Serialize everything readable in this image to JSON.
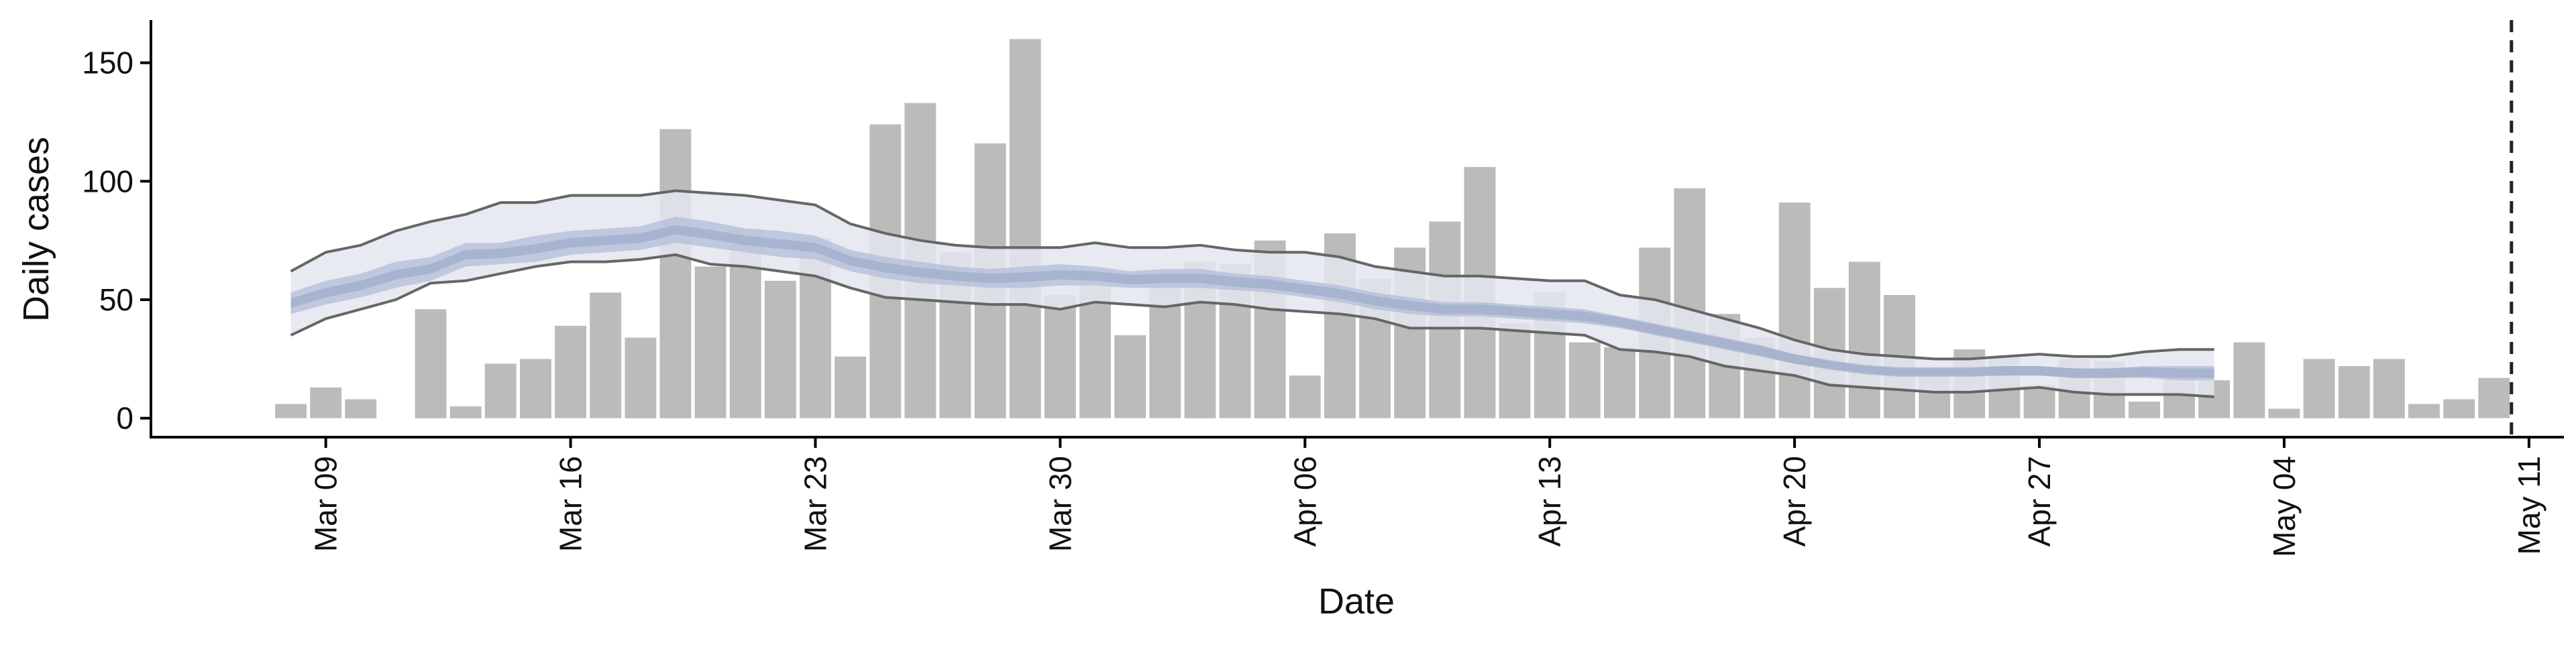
{
  "chart_data": {
    "type": "bar",
    "title": "",
    "xlabel": "Date",
    "ylabel": "Daily cases",
    "x_range": [
      "2020-03-04",
      "2020-05-12"
    ],
    "ylim": [
      -8,
      168
    ],
    "y_ticks": [
      0,
      50,
      100,
      150
    ],
    "x_ticks": [
      {
        "date": "2020-03-09",
        "label": "Mar 09"
      },
      {
        "date": "2020-03-16",
        "label": "Mar 16"
      },
      {
        "date": "2020-03-23",
        "label": "Mar 23"
      },
      {
        "date": "2020-03-30",
        "label": "Mar 30"
      },
      {
        "date": "2020-04-06",
        "label": "Apr 06"
      },
      {
        "date": "2020-04-13",
        "label": "Apr 13"
      },
      {
        "date": "2020-04-20",
        "label": "Apr 20"
      },
      {
        "date": "2020-04-27",
        "label": "Apr 27"
      },
      {
        "date": "2020-05-04",
        "label": "May 04"
      },
      {
        "date": "2020-05-11",
        "label": "May 11"
      }
    ],
    "grid": false,
    "colors": {
      "bars": "#bbbbbb",
      "inner_band": "#b4bfd9",
      "outer_band": "#e4e6ef",
      "median_band": "#9aa6c4",
      "band_lines": "#666666",
      "cutoff_line": "#222222",
      "axis": "#000000"
    },
    "bars": {
      "name": "",
      "dates": [
        "2020-03-08",
        "2020-03-09",
        "2020-03-10",
        "2020-03-11",
        "2020-03-12",
        "2020-03-13",
        "2020-03-14",
        "2020-03-15",
        "2020-03-16",
        "2020-03-17",
        "2020-03-18",
        "2020-03-19",
        "2020-03-20",
        "2020-03-21",
        "2020-03-22",
        "2020-03-23",
        "2020-03-24",
        "2020-03-25",
        "2020-03-26",
        "2020-03-27",
        "2020-03-28",
        "2020-03-29",
        "2020-03-30",
        "2020-03-31",
        "2020-04-01",
        "2020-04-02",
        "2020-04-03",
        "2020-04-04",
        "2020-04-05",
        "2020-04-06",
        "2020-04-07",
        "2020-04-08",
        "2020-04-09",
        "2020-04-10",
        "2020-04-11",
        "2020-04-12",
        "2020-04-13",
        "2020-04-14",
        "2020-04-15",
        "2020-04-16",
        "2020-04-17",
        "2020-04-18",
        "2020-04-19",
        "2020-04-20",
        "2020-04-21",
        "2020-04-22",
        "2020-04-23",
        "2020-04-24",
        "2020-04-25",
        "2020-04-26",
        "2020-04-27",
        "2020-04-28",
        "2020-04-29",
        "2020-04-30",
        "2020-05-01",
        "2020-05-02",
        "2020-05-03",
        "2020-05-04",
        "2020-05-05",
        "2020-05-06",
        "2020-05-07",
        "2020-05-08",
        "2020-05-09",
        "2020-05-10"
      ],
      "values": [
        6,
        13,
        8,
        0,
        46,
        5,
        23,
        25,
        39,
        53,
        34,
        122,
        64,
        80,
        58,
        76,
        26,
        124,
        133,
        70,
        116,
        160,
        52,
        56,
        35,
        60,
        66,
        65,
        75,
        18,
        78,
        59,
        72,
        83,
        106,
        40,
        53,
        32,
        30,
        72,
        97,
        44,
        34,
        91,
        55,
        66,
        52,
        19,
        29,
        26,
        14,
        25,
        24,
        7,
        18,
        16,
        32,
        4,
        25,
        22,
        25,
        6,
        8,
        17
      ]
    },
    "bands": {
      "dates": [
        "2020-03-08",
        "2020-03-09",
        "2020-03-10",
        "2020-03-11",
        "2020-03-12",
        "2020-03-13",
        "2020-03-14",
        "2020-03-15",
        "2020-03-16",
        "2020-03-17",
        "2020-03-18",
        "2020-03-19",
        "2020-03-20",
        "2020-03-21",
        "2020-03-22",
        "2020-03-23",
        "2020-03-24",
        "2020-03-25",
        "2020-03-26",
        "2020-03-27",
        "2020-03-28",
        "2020-03-29",
        "2020-03-30",
        "2020-03-31",
        "2020-04-01",
        "2020-04-02",
        "2020-04-03",
        "2020-04-04",
        "2020-04-05",
        "2020-04-06",
        "2020-04-07",
        "2020-04-08",
        "2020-04-09",
        "2020-04-10",
        "2020-04-11",
        "2020-04-12",
        "2020-04-13",
        "2020-04-14",
        "2020-04-15",
        "2020-04-16",
        "2020-04-17",
        "2020-04-18",
        "2020-04-19",
        "2020-04-20",
        "2020-04-21",
        "2020-04-22",
        "2020-04-23",
        "2020-04-24",
        "2020-04-25",
        "2020-04-26",
        "2020-04-27",
        "2020-04-28",
        "2020-04-29",
        "2020-04-30",
        "2020-05-01",
        "2020-05-02"
      ],
      "outer_upper": [
        62,
        70,
        73,
        79,
        83,
        86,
        91,
        91,
        94,
        94,
        94,
        96,
        95,
        94,
        92,
        90,
        82,
        78,
        75,
        73,
        72,
        72,
        72,
        74,
        72,
        72,
        73,
        71,
        70,
        70,
        68,
        64,
        62,
        60,
        60,
        59,
        58,
        58,
        52,
        50,
        46,
        42,
        38,
        33,
        29,
        27,
        26,
        25,
        25,
        26,
        27,
        26,
        26,
        28,
        29,
        29
      ],
      "inner_upper": [
        53,
        58,
        61,
        66,
        68,
        74,
        74,
        77,
        79,
        80,
        81,
        85,
        83,
        80,
        79,
        77,
        71,
        68,
        66,
        64,
        63,
        64,
        65,
        64,
        62,
        63,
        63,
        61,
        60,
        58,
        56,
        53,
        51,
        49,
        49,
        48,
        47,
        46,
        43,
        40,
        37,
        34,
        31,
        27,
        24,
        22,
        21,
        21,
        21,
        22,
        22,
        21,
        21,
        22,
        22,
        22
      ],
      "inner_lower": [
        44,
        48,
        51,
        55,
        58,
        64,
        65,
        66,
        69,
        70,
        71,
        74,
        72,
        70,
        68,
        67,
        62,
        59,
        57,
        56,
        55,
        55,
        56,
        56,
        55,
        55,
        55,
        54,
        53,
        51,
        49,
        46,
        44,
        43,
        43,
        42,
        41,
        40,
        38,
        35,
        32,
        29,
        26,
        23,
        21,
        19,
        18,
        18,
        18,
        18,
        18,
        17,
        17,
        17,
        16,
        16
      ],
      "outer_lower": [
        35,
        42,
        46,
        50,
        57,
        58,
        61,
        64,
        66,
        66,
        67,
        69,
        65,
        64,
        62,
        60,
        55,
        51,
        50,
        49,
        48,
        48,
        46,
        49,
        48,
        47,
        49,
        48,
        46,
        45,
        44,
        42,
        38,
        38,
        38,
        37,
        36,
        35,
        29,
        28,
        26,
        22,
        20,
        18,
        14,
        13,
        12,
        11,
        11,
        12,
        13,
        11,
        10,
        10,
        10,
        9
      ]
    },
    "cutoff_date": "2020-05-10"
  }
}
